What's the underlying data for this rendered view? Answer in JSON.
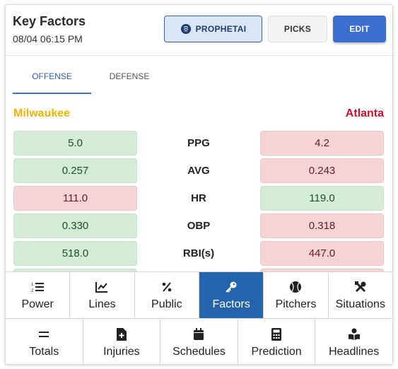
{
  "header": {
    "title": "Key Factors",
    "datetime": "08/04 06:15 PM",
    "buttons": {
      "prophetai": "PROPHETAI",
      "picks": "PICKS",
      "edit": "EDIT"
    }
  },
  "tabs": {
    "offense": "OFFENSE",
    "defense": "DEFENSE",
    "active": "offense"
  },
  "teams": {
    "home": "Milwaukee",
    "away": "Atlanta"
  },
  "colors": {
    "home": "#f0b400",
    "away": "#c8102e",
    "good": "#d4ecd7",
    "bad": "#f6d3d6",
    "active_nav": "#2563ad"
  },
  "stats": [
    {
      "label": "PPG",
      "home": "5.0",
      "away": "4.2",
      "home_better": true
    },
    {
      "label": "AVG",
      "home": "0.257",
      "away": "0.243",
      "home_better": true
    },
    {
      "label": "HR",
      "home": "111.0",
      "away": "119.0",
      "home_better": false
    },
    {
      "label": "OBP",
      "home": "0.330",
      "away": "0.318",
      "home_better": true
    },
    {
      "label": "RBI(s)",
      "home": "518.0",
      "away": "447.0",
      "home_better": true
    }
  ],
  "nav": {
    "row1": [
      {
        "label": "Power",
        "icon": "ordered-list-icon"
      },
      {
        "label": "Lines",
        "icon": "line-chart-icon"
      },
      {
        "label": "Public",
        "icon": "percent-icon"
      },
      {
        "label": "Factors",
        "icon": "key-icon",
        "active": true
      },
      {
        "label": "Pitchers",
        "icon": "baseball-icon"
      },
      {
        "label": "Situations",
        "icon": "tools-icon"
      }
    ],
    "row2": [
      {
        "label": "Totals",
        "icon": "equals-icon"
      },
      {
        "label": "Injuries",
        "icon": "medical-file-icon"
      },
      {
        "label": "Schedules",
        "icon": "calendar-icon"
      },
      {
        "label": "Prediction",
        "icon": "calculator-icon"
      },
      {
        "label": "Headlines",
        "icon": "book-reader-icon"
      }
    ]
  }
}
